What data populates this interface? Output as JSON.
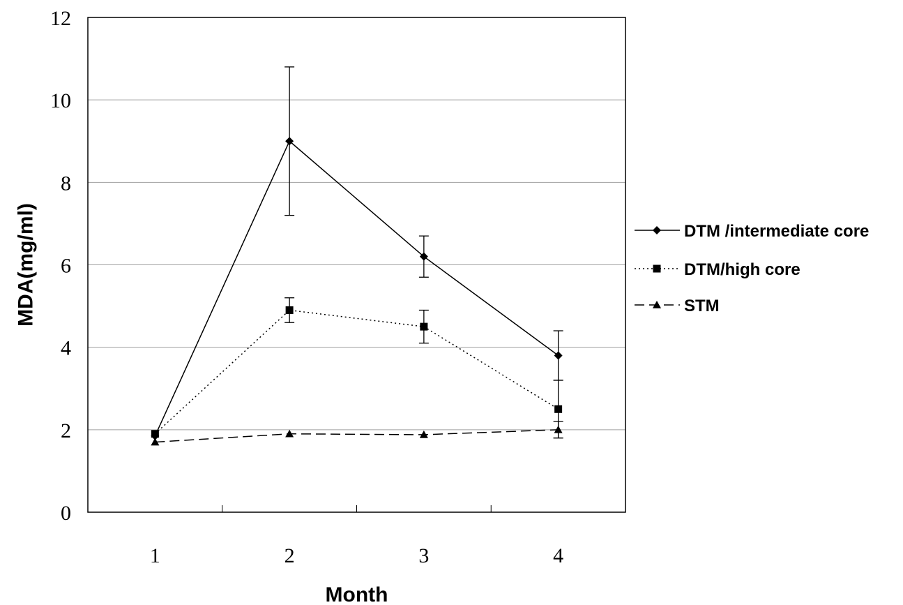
{
  "chart_data": {
    "type": "line",
    "title": "",
    "xlabel": "Month",
    "ylabel": "MDA(mg/ml)",
    "x": [
      1,
      2,
      3,
      4
    ],
    "xlim": [
      0.5,
      4.5
    ],
    "ylim": [
      0,
      12
    ],
    "yticks": [
      0,
      2,
      4,
      6,
      8,
      10,
      12
    ],
    "xticks": [
      1,
      2,
      3,
      4
    ],
    "grid": "horizontal",
    "legend_position": "right",
    "series": [
      {
        "name": "DTM /intermediate core",
        "values": [
          1.85,
          9.0,
          6.2,
          3.8
        ],
        "errors": [
          0,
          1.8,
          0.5,
          0.6
        ],
        "marker": "diamond",
        "line_style": "solid"
      },
      {
        "name": "DTM/high core",
        "values": [
          1.9,
          4.9,
          4.5,
          2.5
        ],
        "errors": [
          0,
          0.3,
          0.4,
          0.7
        ],
        "marker": "square",
        "line_style": "dotted"
      },
      {
        "name": "STM",
        "values": [
          1.7,
          1.9,
          1.88,
          2.0
        ],
        "errors": [
          0,
          0,
          0,
          0.2
        ],
        "marker": "triangle",
        "line_style": "dashed"
      }
    ]
  }
}
